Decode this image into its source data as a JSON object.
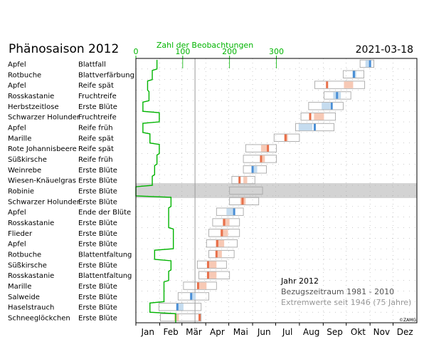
{
  "title": "Phänosaison 2012",
  "date": "2021-03-18",
  "copyright": "©ZAMG",
  "legend": {
    "line1": "Jahr 2012",
    "line2": "Bezugszeitraum 1981 - 2010",
    "line3": "Extremwerte seit 1946 (75 Jahre)"
  },
  "colors": {
    "observation_line": "#00b400",
    "later": "#e8704a",
    "later_light": "#f7c9b5",
    "earlier": "#4a8fd6",
    "earlier_light": "#c5dcef",
    "highlight_row": "#d3d3d3",
    "range_box": "#a8a8a8"
  },
  "chart_data": {
    "type": "table",
    "top_axis": {
      "label": "Zahl der Beobachtungen",
      "ticks": [
        0,
        100,
        200,
        300
      ],
      "range": [
        0,
        600
      ]
    },
    "months": [
      "Jan",
      "Feb",
      "Mär",
      "Apr",
      "Mai",
      "Jun",
      "Jul",
      "Aug",
      "Sep",
      "Okt",
      "Nov",
      "Dez"
    ],
    "rows": [
      {
        "plant": "Apfel",
        "phase": "Blattfall",
        "obs": 45,
        "ref": [
          299,
          304
        ],
        "ext": [
          292,
          310
        ],
        "y2012": 305,
        "deviation": "earlier"
      },
      {
        "plant": "Rotbuche",
        "phase": "Blattverfärbung",
        "obs": 35,
        "ref": [
          282,
          287
        ],
        "ext": [
          270,
          297
        ],
        "y2012": 284,
        "deviation": "earlier"
      },
      {
        "plant": "Apfel",
        "phase": "Reife spät",
        "obs": 25,
        "ref": [
          271,
          283
        ],
        "ext": [
          233,
          298
        ],
        "y2012": 249,
        "deviation": "later"
      },
      {
        "plant": "Rosskastanie",
        "phase": "Fruchtreife",
        "obs": 28,
        "ref": [
          257,
          267
        ],
        "ext": [
          245,
          280
        ],
        "y2012": 262,
        "deviation": "earlier"
      },
      {
        "plant": "Herbstzeitlose",
        "phase": "Erste Blüte",
        "obs": 15,
        "ref": [
          242,
          253
        ],
        "ext": [
          225,
          270
        ],
        "y2012": 255,
        "deviation": "earlier"
      },
      {
        "plant": "Schwarzer Holunder",
        "phase": "Fruchtreife",
        "obs": 50,
        "ref": [
          232,
          245
        ],
        "ext": [
          215,
          260
        ],
        "y2012": 227,
        "deviation": "later"
      },
      {
        "plant": "Apfel",
        "phase": "Reife früh",
        "obs": 15,
        "ref": [
          212,
          230
        ],
        "ext": [
          208,
          258
        ],
        "y2012": 233,
        "deviation": "earlier"
      },
      {
        "plant": "Marille",
        "phase": "Reife spät",
        "obs": 30,
        "ref": [
          193,
          198
        ],
        "ext": [
          180,
          213
        ],
        "y2012": 195,
        "deviation": "later"
      },
      {
        "plant": "Rote Johannisbeere",
        "phase": "Reife spät",
        "obs": 50,
        "ref": [
          163,
          173
        ],
        "ext": [
          143,
          183
        ],
        "y2012": 172,
        "deviation": "later"
      },
      {
        "plant": "Süßkirsche",
        "phase": "Reife früh",
        "obs": 45,
        "ref": [
          163,
          168
        ],
        "ext": [
          140,
          183
        ],
        "y2012": 163,
        "deviation": "later"
      },
      {
        "plant": "Weinrebe",
        "phase": "Erste Blüte",
        "obs": 40,
        "ref": [
          153,
          158
        ],
        "ext": [
          140,
          170
        ],
        "y2012": 152,
        "deviation": "earlier"
      },
      {
        "plant": "Wiesen-Knäuelgras",
        "phase": "Erste Blüte",
        "obs": 35,
        "ref": [
          140,
          145
        ],
        "ext": [
          125,
          155
        ],
        "y2012": 135,
        "deviation": "later"
      },
      {
        "plant": "Robinie",
        "phase": "Erste Blüte",
        "obs": 0,
        "ref": [
          138,
          148
        ],
        "ext": [
          122,
          165
        ],
        "y2012": null,
        "deviation": "none",
        "highlight": true
      },
      {
        "plant": "Schwarzer Holunder",
        "phase": "Erste Blüte",
        "obs": 75,
        "ref": [
          136,
          143
        ],
        "ext": [
          122,
          160
        ],
        "y2012": 139,
        "deviation": "later"
      },
      {
        "plant": "Apfel",
        "phase": "Ende der Blüte",
        "obs": 70,
        "ref": [
          118,
          128
        ],
        "ext": [
          105,
          140
        ],
        "y2012": 128,
        "deviation": "earlier"
      },
      {
        "plant": "Rosskastanie",
        "phase": "Erste Blüte",
        "obs": 70,
        "ref": [
          113,
          122
        ],
        "ext": [
          100,
          135
        ],
        "y2012": 115,
        "deviation": "later"
      },
      {
        "plant": "Flieder",
        "phase": "Erste Blüte",
        "obs": 80,
        "ref": [
          110,
          120
        ],
        "ext": [
          95,
          135
        ],
        "y2012": 112,
        "deviation": "later"
      },
      {
        "plant": "Apfel",
        "phase": "Erste Blüte",
        "obs": 80,
        "ref": [
          104,
          115
        ],
        "ext": [
          92,
          132
        ],
        "y2012": 106,
        "deviation": "later"
      },
      {
        "plant": "Rotbuche",
        "phase": "Blattentfaltung",
        "obs": 40,
        "ref": [
          106,
          112
        ],
        "ext": [
          95,
          128
        ],
        "y2012": 105,
        "deviation": "later"
      },
      {
        "plant": "Süßkirsche",
        "phase": "Erste Blüte",
        "obs": 75,
        "ref": [
          95,
          105
        ],
        "ext": [
          80,
          118
        ],
        "y2012": 94,
        "deviation": "later"
      },
      {
        "plant": "Rosskastanie",
        "phase": "Blattentfaltung",
        "obs": 70,
        "ref": [
          95,
          105
        ],
        "ext": [
          82,
          122
        ],
        "y2012": 94,
        "deviation": "later"
      },
      {
        "plant": "Marille",
        "phase": "Erste Blüte",
        "obs": 60,
        "ref": [
          82,
          92
        ],
        "ext": [
          62,
          105
        ],
        "y2012": 81,
        "deviation": "later"
      },
      {
        "plant": "Salweide",
        "phase": "Erste Blüte",
        "obs": 60,
        "ref": [
          73,
          78
        ],
        "ext": [
          55,
          95
        ],
        "y2012": 72,
        "deviation": "earlier"
      },
      {
        "plant": "Haselstrauch",
        "phase": "Erste Blüte",
        "obs": 30,
        "ref": [
          55,
          62
        ],
        "ext": [
          30,
          85
        ],
        "y2012": 54,
        "deviation": "earlier"
      },
      {
        "plant": "Schneeglöckchen",
        "phase": "Erste Blüte",
        "obs": 85,
        "ref": [
          50,
          56
        ],
        "ext": [
          32,
          85
        ],
        "y2012": 83,
        "deviation": "later"
      }
    ]
  }
}
